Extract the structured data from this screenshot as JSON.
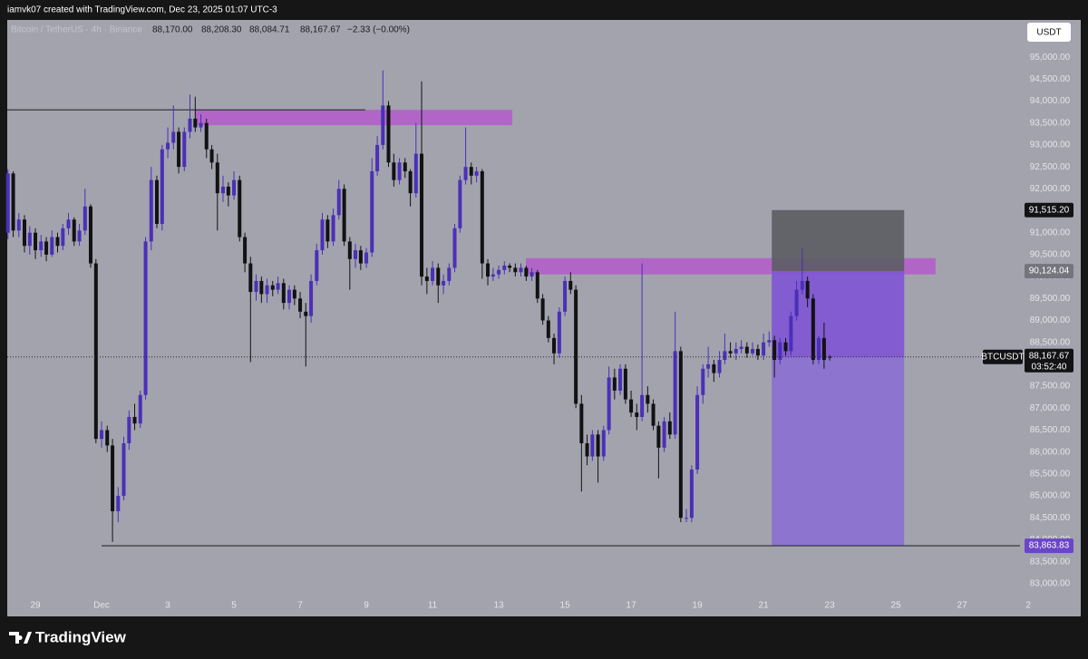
{
  "header": {
    "credit": "iamvk07 created with TradingView.com, Dec 23, 2025 01:07 UTC-3"
  },
  "footer": {
    "brand": "TradingView"
  },
  "chart_data": {
    "type": "candlestick",
    "title": "Bitcoin / TetherUS · 4h · Binance",
    "ohlc_header": [
      "88,170.00",
      "88,208.30",
      "88,084.71",
      "88,167.67",
      "−2.33 (−0.00%)"
    ],
    "currency": "USDT",
    "up_color": "#4a30b8",
    "down_color": "#121214",
    "grid": false,
    "xlim": [
      -1.85,
      28.75
    ],
    "ylim": [
      82770,
      95850
    ],
    "xticks": [
      {
        "value": -1,
        "label": "29"
      },
      {
        "value": 1,
        "label": "Dec"
      },
      3,
      5,
      7,
      9,
      11,
      13,
      15,
      17,
      19,
      21,
      23,
      25,
      27,
      {
        "value": 29,
        "label": "2"
      }
    ],
    "yticks": [
      {
        "value": 83000,
        "label": "83,000.00"
      },
      {
        "value": 83500,
        "label": "83,500.00"
      },
      {
        "value": 84000,
        "label": "84,000.00"
      },
      {
        "value": 84500,
        "label": "84,500.00"
      },
      {
        "value": 85000,
        "label": "85,000.00"
      },
      {
        "value": 85500,
        "label": "85,500.00"
      },
      {
        "value": 86000,
        "label": "86,000.00"
      },
      {
        "value": 86500,
        "label": "86,500.00"
      },
      {
        "value": 87000,
        "label": "87,000.00"
      },
      {
        "value": 87500,
        "label": "87,500.00"
      },
      {
        "value": 88000,
        "label": "88,000.00"
      },
      {
        "value": 88500,
        "label": "88,500.00"
      },
      {
        "value": 89000,
        "label": "89,000.00"
      },
      {
        "value": 89500,
        "label": "89,500.00"
      },
      {
        "value": 90000,
        "label": "90,000.00"
      },
      {
        "value": 90500,
        "label": "90,500.00"
      },
      {
        "value": 91000,
        "label": "91,000.00"
      },
      {
        "value": 91500,
        "label": "91,500.00"
      },
      {
        "value": 92000,
        "label": "92,000.00"
      },
      {
        "value": 92500,
        "label": "92,500.00"
      },
      {
        "value": 93000,
        "label": "93,000.00"
      },
      {
        "value": 93500,
        "label": "93,500.00"
      },
      {
        "value": 94000,
        "label": "94,000.00"
      },
      {
        "value": 94500,
        "label": "94,500.00"
      },
      {
        "value": 95000,
        "label": "95,000.00"
      }
    ],
    "x": [
      -1.83,
      -1.67,
      -1.5,
      -1.33,
      -1.17,
      -1,
      -0.83,
      -0.67,
      -0.5,
      -0.33,
      -0.17,
      0,
      0.17,
      0.33,
      0.5,
      0.67,
      0.83,
      1,
      1.17,
      1.33,
      1.5,
      1.67,
      1.83,
      2,
      2.17,
      2.33,
      2.5,
      2.67,
      2.83,
      3,
      3.17,
      3.33,
      3.5,
      3.67,
      3.83,
      4,
      4.17,
      4.33,
      4.5,
      4.67,
      4.83,
      5,
      5.17,
      5.33,
      5.5,
      5.67,
      5.83,
      6,
      6.17,
      6.33,
      6.5,
      6.67,
      6.83,
      7,
      7.17,
      7.33,
      7.5,
      7.67,
      7.83,
      8,
      8.17,
      8.33,
      8.5,
      8.67,
      8.83,
      9,
      9.17,
      9.33,
      9.5,
      9.67,
      9.83,
      10,
      10.17,
      10.33,
      10.5,
      10.67,
      10.83,
      11,
      11.17,
      11.33,
      11.5,
      11.67,
      11.83,
      12,
      12.17,
      12.33,
      12.5,
      12.67,
      12.83,
      13,
      13.17,
      13.33,
      13.5,
      13.67,
      13.83,
      14,
      14.17,
      14.33,
      14.5,
      14.67,
      14.83,
      15,
      15.17,
      15.33,
      15.5,
      15.67,
      15.83,
      16,
      16.17,
      16.33,
      16.5,
      16.67,
      16.83,
      17,
      17.17,
      17.33,
      17.5,
      17.67,
      17.83,
      18,
      18.17,
      18.33,
      18.5,
      18.67,
      18.83,
      19,
      19.17,
      19.33,
      19.5,
      19.67,
      19.83,
      20,
      20.17,
      20.33,
      20.5,
      20.67,
      20.83,
      21,
      21.17,
      21.33,
      21.5,
      21.67,
      21.83,
      22,
      22.17,
      22.33,
      22.5,
      22.67,
      22.83,
      23
    ],
    "ohlc": [
      [
        91000,
        92450,
        90850,
        92350
      ],
      [
        92350,
        92400,
        90900,
        91050
      ],
      [
        91050,
        91450,
        90900,
        91300
      ],
      [
        91300,
        91400,
        90550,
        90700
      ],
      [
        90700,
        91150,
        90500,
        91000
      ],
      [
        91000,
        91100,
        90400,
        90600
      ],
      [
        90600,
        90950,
        90450,
        90800
      ],
      [
        90800,
        90900,
        90350,
        90500
      ],
      [
        90500,
        91050,
        90450,
        90900
      ],
      [
        90900,
        91000,
        90550,
        90700
      ],
      [
        90700,
        91200,
        90600,
        91100
      ],
      [
        91100,
        91450,
        90950,
        91300
      ],
      [
        91300,
        91350,
        90700,
        90800
      ],
      [
        90800,
        91200,
        90700,
        91050
      ],
      [
        91050,
        92000,
        90950,
        91600
      ],
      [
        91600,
        91650,
        90200,
        90300
      ],
      [
        90300,
        90400,
        86200,
        86300
      ],
      [
        86300,
        86700,
        86100,
        86500
      ],
      [
        86500,
        86600,
        86000,
        86150
      ],
      [
        86150,
        86300,
        83950,
        84650
      ],
      [
        84650,
        85200,
        84400,
        85000
      ],
      [
        85000,
        86350,
        84900,
        86200
      ],
      [
        86200,
        86950,
        86050,
        86800
      ],
      [
        86800,
        87100,
        86500,
        86650
      ],
      [
        86650,
        87400,
        86550,
        87300
      ],
      [
        87300,
        90900,
        87200,
        90800
      ],
      [
        90800,
        92500,
        90600,
        92200
      ],
      [
        92200,
        92300,
        91100,
        91200
      ],
      [
        91200,
        93000,
        91050,
        92900
      ],
      [
        92900,
        93400,
        92700,
        93050
      ],
      [
        93050,
        93900,
        92900,
        93300
      ],
      [
        93300,
        93400,
        92350,
        92500
      ],
      [
        92500,
        93400,
        92400,
        93300
      ],
      [
        93300,
        94150,
        93150,
        93600
      ],
      [
        93600,
        94100,
        93300,
        93400
      ],
      [
        93400,
        93700,
        93300,
        93500
      ],
      [
        93500,
        93600,
        92700,
        92900
      ],
      [
        92900,
        93000,
        92450,
        92600
      ],
      [
        92600,
        92800,
        91050,
        91900
      ],
      [
        91900,
        92300,
        91700,
        92050
      ],
      [
        92050,
        92150,
        91600,
        91850
      ],
      [
        91850,
        92400,
        91750,
        92200
      ],
      [
        92200,
        92300,
        90800,
        90900
      ],
      [
        90900,
        91000,
        90100,
        90300
      ],
      [
        90300,
        90450,
        88050,
        89650
      ],
      [
        89650,
        90050,
        89450,
        89900
      ],
      [
        89900,
        90000,
        89400,
        89600
      ],
      [
        89600,
        89950,
        89400,
        89800
      ],
      [
        89800,
        89900,
        89550,
        89700
      ],
      [
        89700,
        90000,
        89600,
        89850
      ],
      [
        89850,
        89950,
        89250,
        89400
      ],
      [
        89400,
        89800,
        89250,
        89700
      ],
      [
        89700,
        89800,
        89350,
        89500
      ],
      [
        89500,
        89650,
        89050,
        89200
      ],
      [
        89200,
        89400,
        87950,
        89100
      ],
      [
        89100,
        90050,
        88950,
        89900
      ],
      [
        89900,
        90750,
        89800,
        90600
      ],
      [
        90600,
        91450,
        90500,
        91300
      ],
      [
        91300,
        91400,
        90650,
        90800
      ],
      [
        90800,
        91550,
        90700,
        91400
      ],
      [
        91400,
        92200,
        91300,
        92000
      ],
      [
        92000,
        92100,
        90700,
        90800
      ],
      [
        90800,
        90900,
        89700,
        90400
      ],
      [
        90400,
        90750,
        90200,
        90600
      ],
      [
        90600,
        90700,
        90150,
        90300
      ],
      [
        90300,
        90650,
        90200,
        90550
      ],
      [
        90550,
        92700,
        90450,
        92400
      ],
      [
        92400,
        93200,
        92300,
        93000
      ],
      [
        93000,
        94700,
        92900,
        93900
      ],
      [
        93900,
        94000,
        92500,
        92600
      ],
      [
        92600,
        92800,
        92050,
        92200
      ],
      [
        92200,
        92700,
        92100,
        92600
      ],
      [
        92600,
        92700,
        92250,
        92400
      ],
      [
        92400,
        92450,
        91600,
        91900
      ],
      [
        91900,
        93500,
        91800,
        92800
      ],
      [
        92800,
        94450,
        89800,
        90000
      ],
      [
        90000,
        90200,
        89600,
        89900
      ],
      [
        89900,
        90350,
        89800,
        90200
      ],
      [
        90200,
        90300,
        89400,
        89800
      ],
      [
        89800,
        90050,
        89600,
        89900
      ],
      [
        89900,
        90300,
        89800,
        90200
      ],
      [
        90200,
        91200,
        90100,
        91100
      ],
      [
        91100,
        92300,
        91000,
        92200
      ],
      [
        92200,
        93400,
        92100,
        92500
      ],
      [
        92500,
        92600,
        92100,
        92300
      ],
      [
        92300,
        92500,
        92150,
        92400
      ],
      [
        92400,
        92450,
        89950,
        90300
      ],
      [
        90300,
        90400,
        89800,
        90000
      ],
      [
        90000,
        90200,
        89900,
        90050
      ],
      [
        90050,
        90250,
        89950,
        90150
      ],
      [
        90150,
        90350,
        90050,
        90250
      ],
      [
        90250,
        90300,
        90100,
        90200
      ],
      [
        90200,
        90300,
        90000,
        90100
      ],
      [
        90100,
        90300,
        90000,
        90200
      ],
      [
        90200,
        90250,
        89900,
        90000
      ],
      [
        90000,
        90200,
        89900,
        90100
      ],
      [
        90100,
        90150,
        89400,
        89500
      ],
      [
        89500,
        89600,
        88900,
        89000
      ],
      [
        89000,
        89100,
        88500,
        88600
      ],
      [
        88600,
        88700,
        88000,
        88250
      ],
      [
        88250,
        89300,
        88150,
        89200
      ],
      [
        89200,
        90000,
        89100,
        89900
      ],
      [
        89900,
        90100,
        89600,
        89700
      ],
      [
        89700,
        89800,
        87000,
        87100
      ],
      [
        87100,
        87300,
        85100,
        86200
      ],
      [
        86200,
        86400,
        85700,
        85900
      ],
      [
        85900,
        86500,
        85800,
        86400
      ],
      [
        86400,
        86500,
        85300,
        85900
      ],
      [
        85900,
        86600,
        85800,
        86500
      ],
      [
        86500,
        87950,
        86400,
        87700
      ],
      [
        87700,
        87900,
        87200,
        87400
      ],
      [
        87400,
        88000,
        87300,
        87900
      ],
      [
        87900,
        88000,
        87100,
        87200
      ],
      [
        87200,
        87400,
        86800,
        86900
      ],
      [
        86900,
        87100,
        86500,
        86800
      ],
      [
        86800,
        90300,
        86700,
        87300
      ],
      [
        87300,
        87500,
        86900,
        87100
      ],
      [
        87100,
        87200,
        86500,
        86600
      ],
      [
        86600,
        86700,
        85400,
        86100
      ],
      [
        86100,
        86800,
        86000,
        86700
      ],
      [
        86700,
        86900,
        86300,
        86400
      ],
      [
        86400,
        89200,
        86300,
        88300
      ],
      [
        88300,
        88400,
        84400,
        84500
      ],
      [
        84500,
        84700,
        84400,
        84500
      ],
      [
        84500,
        85700,
        84400,
        85600
      ],
      [
        85600,
        87500,
        85500,
        87300
      ],
      [
        87300,
        88000,
        87100,
        87900
      ],
      [
        87900,
        88400,
        87700,
        88000
      ],
      [
        88000,
        88100,
        87600,
        87800
      ],
      [
        87800,
        88300,
        87700,
        88100
      ],
      [
        88100,
        88700,
        88000,
        88300
      ],
      [
        88300,
        88500,
        88150,
        88250
      ],
      [
        88250,
        88500,
        88100,
        88350
      ],
      [
        88350,
        88550,
        88250,
        88400
      ],
      [
        88400,
        88500,
        88150,
        88250
      ],
      [
        88250,
        88500,
        88200,
        88350
      ],
      [
        88350,
        88450,
        88100,
        88200
      ],
      [
        88200,
        88700,
        88100,
        88500
      ],
      [
        88500,
        88750,
        88400,
        88550
      ],
      [
        88550,
        88650,
        87700,
        88100
      ],
      [
        88100,
        88600,
        88000,
        88500
      ],
      [
        88500,
        88600,
        88200,
        88300
      ],
      [
        88300,
        89200,
        88200,
        89100
      ],
      [
        89100,
        89900,
        89000,
        89700
      ],
      [
        89700,
        90650,
        89600,
        89900
      ],
      [
        89900,
        90000,
        89300,
        89500
      ],
      [
        89500,
        89600,
        88000,
        88100
      ],
      [
        88100,
        88650,
        88000,
        88600
      ],
      [
        88600,
        88950,
        87900,
        88100
      ],
      [
        88170,
        88208.3,
        88084.71,
        88167.67
      ]
    ],
    "zones": [
      {
        "x": [
          3.82,
          13.41
        ],
        "y": [
          93450,
          93800
        ],
        "color": "#b45ccb"
      },
      {
        "x": [
          13.82,
          26.2
        ],
        "y": [
          90050,
          90420
        ],
        "color": "#b45ccb"
      }
    ],
    "hlines": [
      {
        "y": 93800,
        "x": [
          -1.85,
          8.97
        ],
        "color": "#2a2a30"
      },
      {
        "y": 83863.83,
        "x": [
          1,
          28.75
        ],
        "color": "#2a2a30"
      }
    ],
    "position": {
      "x": [
        21.25,
        25.25
      ],
      "target": {
        "value": 91515.2,
        "label": "91,515.20",
        "color": "#5c5c63"
      },
      "entry": {
        "value": 90124.04,
        "label": "90,124.04",
        "color": "#7a48d2"
      },
      "stop": {
        "value": 83863.83,
        "label": "83,863.83",
        "color": "#8a6cd4"
      }
    },
    "last": {
      "value": 88167.67,
      "label": "88,167.67",
      "symbol": "BTCUSDT",
      "countdown": "03:52:40"
    }
  }
}
